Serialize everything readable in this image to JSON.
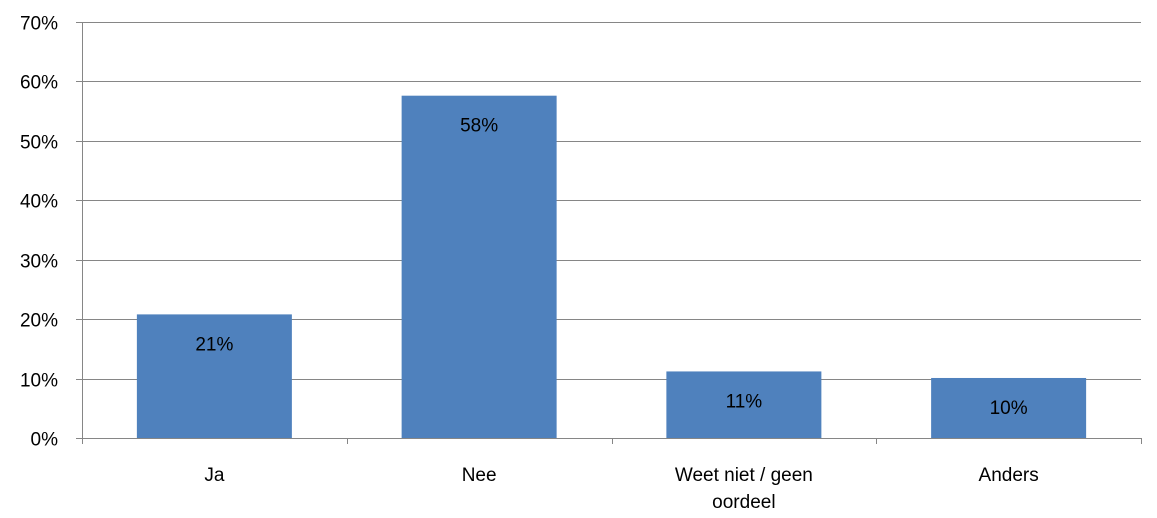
{
  "chart_data": {
    "type": "bar",
    "categories": [
      "Ja",
      "Nee",
      "Weet niet / geen oordeel",
      "Anders"
    ],
    "category_label_lines": [
      [
        "Ja"
      ],
      [
        "Nee"
      ],
      [
        "Weet niet / geen",
        "oordeel"
      ],
      [
        "Anders"
      ]
    ],
    "values": [
      21,
      58,
      11,
      10
    ],
    "value_heights": [
      20.8,
      57.6,
      11.2,
      10.1
    ],
    "data_labels": [
      "21%",
      "58%",
      "11%",
      "10%"
    ],
    "y_ticks": [
      "0%",
      "10%",
      "20%",
      "30%",
      "40%",
      "50%",
      "60%",
      "70%"
    ],
    "ylim": [
      0,
      70
    ],
    "y_unit": "%",
    "grid": true,
    "legend": "none",
    "bar_color": "#4F81BD",
    "grid_color": "#868686",
    "title": "",
    "xlabel": "",
    "ylabel": ""
  }
}
